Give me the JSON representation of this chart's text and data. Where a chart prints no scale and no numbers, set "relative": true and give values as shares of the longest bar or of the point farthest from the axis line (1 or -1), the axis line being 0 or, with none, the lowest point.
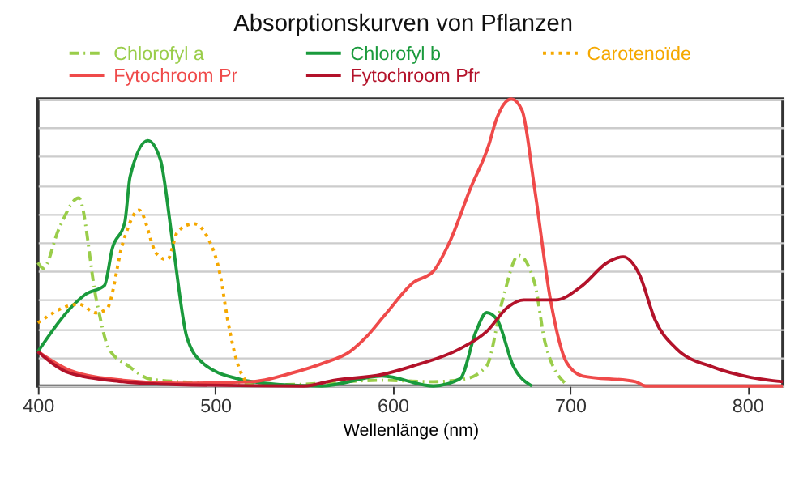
{
  "chart_data": {
    "type": "line",
    "title": "Absorptionskurven von Pflanzen",
    "xlabel": "Wellenlänge (nm)",
    "relative": true,
    "xlim": [
      400,
      820
    ],
    "xticks": [
      400,
      500,
      600,
      700,
      800
    ],
    "grid": "y",
    "tick_labels": "x",
    "legend": "top",
    "marker": "none",
    "series": [
      {
        "name": "Chlorofyl a",
        "color": "#9acd4a",
        "line_style": "dashed",
        "x": [
          400,
          403,
          412,
          423,
          433,
          440,
          451,
          463,
          480,
          500,
          540,
          594,
          623,
          641,
          653,
          662,
          671,
          680,
          686,
          698
        ],
        "values": [
          0.43,
          0.41,
          0.55,
          0.655,
          0.3,
          0.13,
          0.07,
          0.025,
          0.015,
          0.01,
          0.005,
          0.02,
          0.015,
          0.025,
          0.07,
          0.3,
          0.455,
          0.36,
          0.15,
          0.005
        ]
      },
      {
        "name": "Chlorofyl b",
        "color": "#1a9a3c",
        "x": [
          400,
          423,
          427,
          437.5,
          442,
          449,
          452,
          462,
          469,
          476,
          484,
          493,
          513,
          537,
          560,
          594,
          623,
          638,
          647,
          653,
          659,
          668,
          678.5
        ],
        "values": [
          0.12,
          0.3,
          0.32,
          0.35,
          0.48,
          0.57,
          0.73,
          0.855,
          0.79,
          0.5,
          0.17,
          0.08,
          0.025,
          0.005,
          0,
          0.035,
          0,
          0.025,
          0.19,
          0.256,
          0.23,
          0.07,
          0
        ]
      },
      {
        "name": "Carotenoïde",
        "color": "#f5a800",
        "line_style": "dotted",
        "x": [
          400,
          423,
          433,
          439,
          448,
          457,
          467,
          473,
          479,
          488,
          495.5,
          503,
          507,
          513,
          518
        ],
        "values": [
          0.22,
          0.285,
          0.255,
          0.27,
          0.5,
          0.613,
          0.46,
          0.44,
          0.54,
          0.565,
          0.52,
          0.38,
          0.23,
          0.07,
          0.01
        ]
      },
      {
        "name": "Fytochroom Pr",
        "color": "#ef4a4a",
        "x": [
          400,
          418,
          448,
          478,
          520,
          543,
          561,
          576,
          585,
          596,
          611.6,
          623,
          632,
          644,
          654.5,
          658,
          667,
          673,
          680,
          689,
          698,
          707,
          737,
          742.6,
          820
        ],
        "values": [
          0.12,
          0.055,
          0.02,
          0.01,
          0.015,
          0.045,
          0.08,
          0.12,
          0.17,
          0.25,
          0.36,
          0.4,
          0.5,
          0.69,
          0.845,
          0.92,
          1.0,
          0.96,
          0.69,
          0.3,
          0.083,
          0.035,
          0.015,
          0,
          0
        ]
      },
      {
        "name": "Fytochroom Pfr",
        "color": "#b3122a",
        "x": [
          400,
          418,
          448,
          478,
          550,
          567,
          594,
          611.6,
          638,
          653,
          665,
          674,
          692,
          707,
          721,
          730,
          739,
          748,
          760,
          781,
          802,
          820
        ],
        "values": [
          0.12,
          0.045,
          0.015,
          0.005,
          0,
          0.02,
          0.04,
          0.07,
          0.13,
          0.19,
          0.275,
          0.3,
          0.3,
          0.35,
          0.43,
          0.45,
          0.39,
          0.23,
          0.13,
          0.065,
          0.03,
          0.015
        ]
      }
    ]
  }
}
